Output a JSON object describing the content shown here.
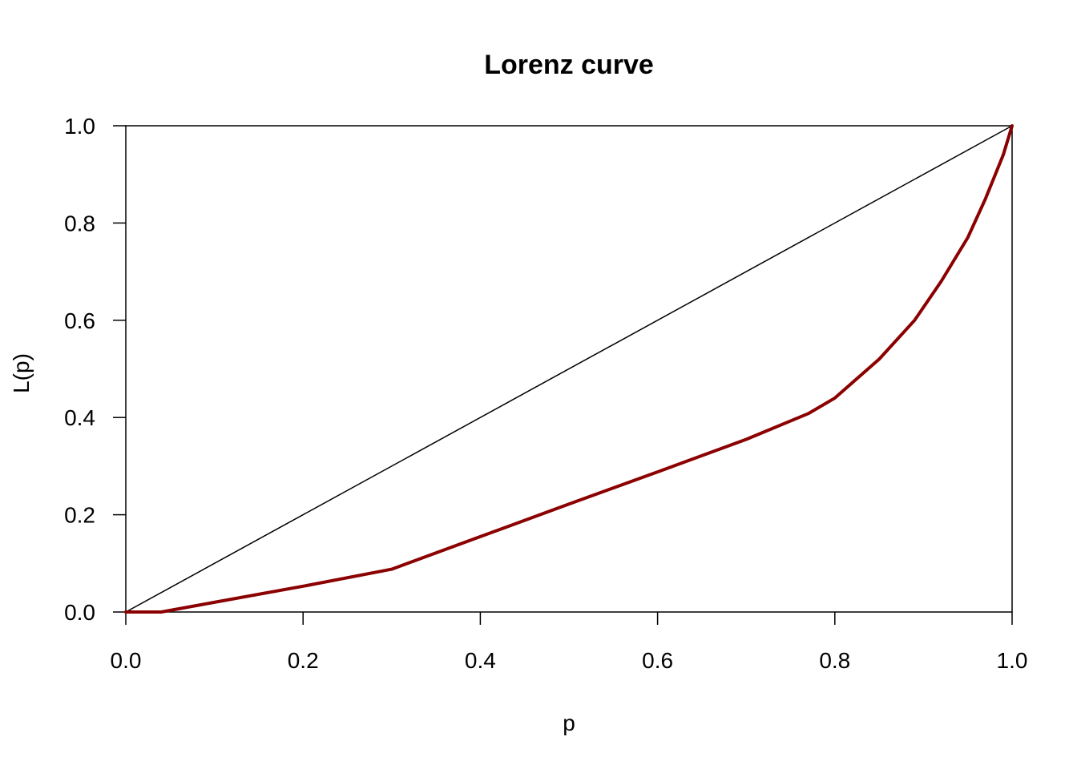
{
  "chart_data": {
    "type": "line",
    "title": "Lorenz curve",
    "xlabel": "p",
    "ylabel": "L(p)",
    "xlim": [
      0,
      1
    ],
    "ylim": [
      0,
      1
    ],
    "x_ticks": [
      "0.0",
      "0.2",
      "0.4",
      "0.6",
      "0.8",
      "1.0"
    ],
    "y_ticks": [
      "0.0",
      "0.2",
      "0.4",
      "0.6",
      "0.8",
      "1.0"
    ],
    "grid": false,
    "box": true,
    "series": [
      {
        "role": "equality-line",
        "color": "#000000",
        "x": [
          0,
          1
        ],
        "y": [
          0,
          1
        ]
      },
      {
        "role": "lorenz-curve",
        "color": "#8b0000",
        "x": [
          0,
          0.04,
          0.1,
          0.2,
          0.3,
          0.4,
          0.5,
          0.6,
          0.7,
          0.77,
          0.8,
          0.85,
          0.89,
          0.92,
          0.95,
          0.97,
          0.99,
          1.0
        ],
        "y": [
          0,
          0,
          0.02,
          0.053,
          0.088,
          0.155,
          0.222,
          0.288,
          0.355,
          0.408,
          0.44,
          0.52,
          0.6,
          0.68,
          0.77,
          0.85,
          0.94,
          1.0
        ]
      }
    ]
  }
}
